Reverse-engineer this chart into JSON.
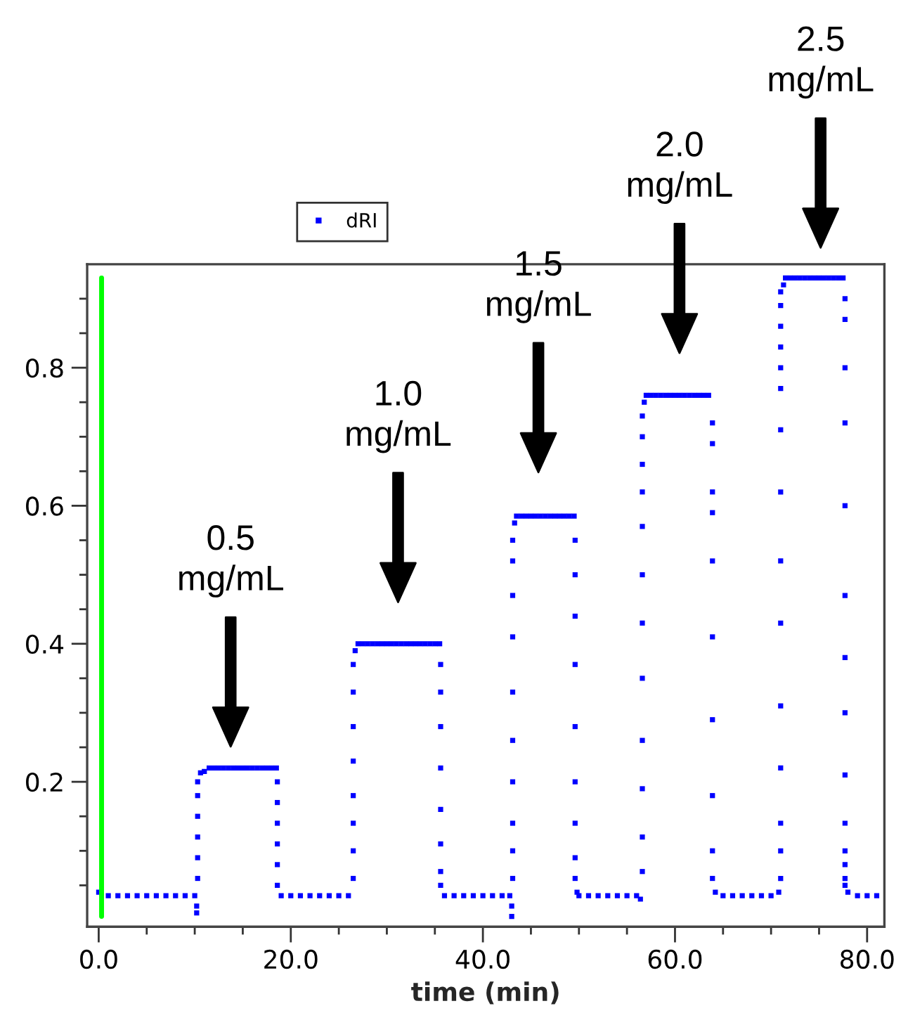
{
  "chart_data": {
    "type": "scatter",
    "xlabel": "time (min)",
    "xlim": [
      -1.2,
      81.8
    ],
    "ylim": [
      -0.01,
      0.95
    ],
    "xticks": [
      {
        "value": 0,
        "label": "0.0"
      },
      {
        "value": 5,
        "label": null
      },
      {
        "value": 10,
        "label": null
      },
      {
        "value": 15,
        "label": null
      },
      {
        "value": 20,
        "label": "20.0"
      },
      {
        "value": 25,
        "label": null
      },
      {
        "value": 30,
        "label": null
      },
      {
        "value": 35,
        "label": null
      },
      {
        "value": 40,
        "label": "40.0"
      },
      {
        "value": 45,
        "label": null
      },
      {
        "value": 50,
        "label": null
      },
      {
        "value": 55,
        "label": null
      },
      {
        "value": 60,
        "label": "60.0"
      },
      {
        "value": 65,
        "label": null
      },
      {
        "value": 70,
        "label": null
      },
      {
        "value": 75,
        "label": null
      },
      {
        "value": 80,
        "label": "80.0"
      }
    ],
    "yticks": [
      {
        "value": 0.05,
        "label": null
      },
      {
        "value": 0.1,
        "label": null
      },
      {
        "value": 0.15,
        "label": null
      },
      0.2,
      {
        "value": 0.25,
        "label": null
      },
      {
        "value": 0.3,
        "label": null
      },
      {
        "value": 0.35,
        "label": null
      },
      0.4,
      {
        "value": 0.45,
        "label": null
      },
      {
        "value": 0.5,
        "label": null
      },
      {
        "value": 0.55,
        "label": null
      },
      0.6,
      {
        "value": 0.65,
        "label": null
      },
      {
        "value": 0.7,
        "label": null
      },
      {
        "value": 0.75,
        "label": null
      },
      0.8,
      {
        "value": 0.85,
        "label": null
      },
      {
        "value": 0.9,
        "label": null
      }
    ],
    "grid": false,
    "legend": "top",
    "marker": "square",
    "series": [
      {
        "name": "dRI",
        "color": "#0000ff",
        "x": [
          0,
          1,
          2,
          3,
          4,
          5,
          6,
          7,
          8,
          9,
          10,
          10.2,
          10.2,
          10.3,
          10.3,
          10.3,
          10.3,
          10.3,
          10.3,
          10.6,
          11.0,
          11.5,
          12,
          12.5,
          13,
          13.5,
          14,
          14.5,
          15,
          15.5,
          16,
          16.5,
          17,
          17.5,
          18,
          18.5,
          18.6,
          18.6,
          18.6,
          18.6,
          18.6,
          18.6,
          19,
          20,
          21,
          22,
          23,
          24,
          25,
          26,
          26.5,
          26.5,
          26.5,
          26.5,
          26.5,
          26.5,
          26.5,
          26.5,
          26.7,
          27,
          27.5,
          28,
          28.5,
          29,
          29.5,
          30,
          30.5,
          31,
          31.5,
          32,
          32.5,
          33,
          33.5,
          34,
          34.5,
          35,
          35.5,
          35.6,
          35.6,
          35.6,
          35.6,
          35.6,
          35.6,
          35.6,
          35.6,
          36,
          37,
          38,
          39,
          40,
          41,
          42,
          42.8,
          43.0,
          43.0,
          43.1,
          43.1,
          43.1,
          43.1,
          43.1,
          43.1,
          43.1,
          43.1,
          43.1,
          43.1,
          43.3,
          43.5,
          44,
          44.5,
          45,
          45.5,
          46,
          46.5,
          47,
          47.5,
          48,
          48.5,
          49,
          49.5,
          49.6,
          49.6,
          49.6,
          49.6,
          49.6,
          49.6,
          49.6,
          49.6,
          49.6,
          49.8,
          50,
          51,
          52,
          53,
          54,
          55,
          56,
          56.4,
          56.6,
          56.6,
          56.6,
          56.6,
          56.6,
          56.6,
          56.6,
          56.6,
          56.6,
          56.6,
          56.6,
          56.6,
          56.8,
          57,
          57.5,
          58,
          58.5,
          59,
          59.5,
          60,
          60.5,
          61,
          61.5,
          62,
          62.5,
          63,
          63.5,
          63.9,
          63.9,
          63.9,
          63.9,
          63.9,
          63.9,
          63.9,
          63.9,
          63.9,
          63.9,
          64.2,
          65,
          66,
          67,
          68,
          69,
          70,
          70.8,
          71.0,
          71.0,
          71.0,
          71.0,
          71.0,
          71.0,
          71.0,
          71.0,
          71.0,
          71.0,
          71.0,
          71.0,
          71.0,
          71.0,
          71.0,
          71.3,
          71.5,
          72,
          72.5,
          73,
          73.5,
          74,
          74.5,
          75,
          75.5,
          76,
          76.5,
          77,
          77.5,
          77.7,
          77.7,
          77.7,
          77.7,
          77.7,
          77.7,
          77.7,
          77.7,
          77.7,
          77.7,
          77.7,
          77.7,
          77.7,
          77.7,
          78.0,
          79,
          80,
          81
        ],
        "values": [
          0.04,
          0.035,
          0.035,
          0.035,
          0.035,
          0.035,
          0.035,
          0.035,
          0.035,
          0.035,
          0.035,
          0.02,
          0.01,
          0.06,
          0.09,
          0.12,
          0.15,
          0.18,
          0.2,
          0.213,
          0.215,
          0.22,
          0.22,
          0.22,
          0.22,
          0.22,
          0.22,
          0.22,
          0.22,
          0.22,
          0.22,
          0.22,
          0.22,
          0.22,
          0.22,
          0.22,
          0.2,
          0.17,
          0.14,
          0.11,
          0.08,
          0.05,
          0.035,
          0.035,
          0.035,
          0.035,
          0.035,
          0.035,
          0.035,
          0.035,
          0.06,
          0.1,
          0.14,
          0.18,
          0.23,
          0.28,
          0.33,
          0.37,
          0.39,
          0.4,
          0.4,
          0.4,
          0.4,
          0.4,
          0.4,
          0.4,
          0.4,
          0.4,
          0.4,
          0.4,
          0.4,
          0.4,
          0.4,
          0.4,
          0.4,
          0.4,
          0.4,
          0.37,
          0.33,
          0.28,
          0.22,
          0.16,
          0.11,
          0.07,
          0.05,
          0.035,
          0.035,
          0.035,
          0.035,
          0.035,
          0.035,
          0.035,
          0.035,
          0.02,
          0.005,
          0.06,
          0.1,
          0.14,
          0.2,
          0.26,
          0.33,
          0.41,
          0.47,
          0.52,
          0.55,
          0.575,
          0.585,
          0.585,
          0.585,
          0.585,
          0.585,
          0.585,
          0.585,
          0.585,
          0.585,
          0.585,
          0.585,
          0.585,
          0.585,
          0.55,
          0.5,
          0.44,
          0.37,
          0.28,
          0.2,
          0.14,
          0.09,
          0.06,
          0.04,
          0.035,
          0.035,
          0.035,
          0.035,
          0.035,
          0.035,
          0.035,
          0.03,
          0.07,
          0.12,
          0.19,
          0.26,
          0.35,
          0.43,
          0.5,
          0.57,
          0.62,
          0.66,
          0.7,
          0.73,
          0.75,
          0.76,
          0.76,
          0.76,
          0.76,
          0.76,
          0.76,
          0.76,
          0.76,
          0.76,
          0.76,
          0.76,
          0.76,
          0.76,
          0.76,
          0.72,
          0.69,
          0.62,
          0.59,
          0.52,
          0.41,
          0.29,
          0.18,
          0.1,
          0.06,
          0.04,
          0.035,
          0.035,
          0.035,
          0.035,
          0.035,
          0.035,
          0.04,
          0.06,
          0.1,
          0.14,
          0.22,
          0.31,
          0.43,
          0.52,
          0.62,
          0.71,
          0.77,
          0.8,
          0.83,
          0.86,
          0.89,
          0.91,
          0.92,
          0.93,
          0.93,
          0.93,
          0.93,
          0.93,
          0.93,
          0.93,
          0.93,
          0.93,
          0.93,
          0.93,
          0.93,
          0.93,
          0.9,
          0.87,
          0.8,
          0.72,
          0.6,
          0.47,
          0.38,
          0.3,
          0.21,
          0.14,
          0.1,
          0.08,
          0.06,
          0.05,
          0.04,
          0.035,
          0.035,
          0.035
        ]
      },
      {
        "color": "#00ff00",
        "type": "line",
        "marker": "none",
        "x": [
          0.3,
          0.3
        ],
        "values": [
          0.005,
          0.93
        ]
      }
    ],
    "annotations": [
      "0.5\nmg/mL",
      "1.0\nmg/mL",
      "1.5\nmg/mL",
      "2.0\nmg/mL",
      "2.5\nmg/mL"
    ]
  }
}
